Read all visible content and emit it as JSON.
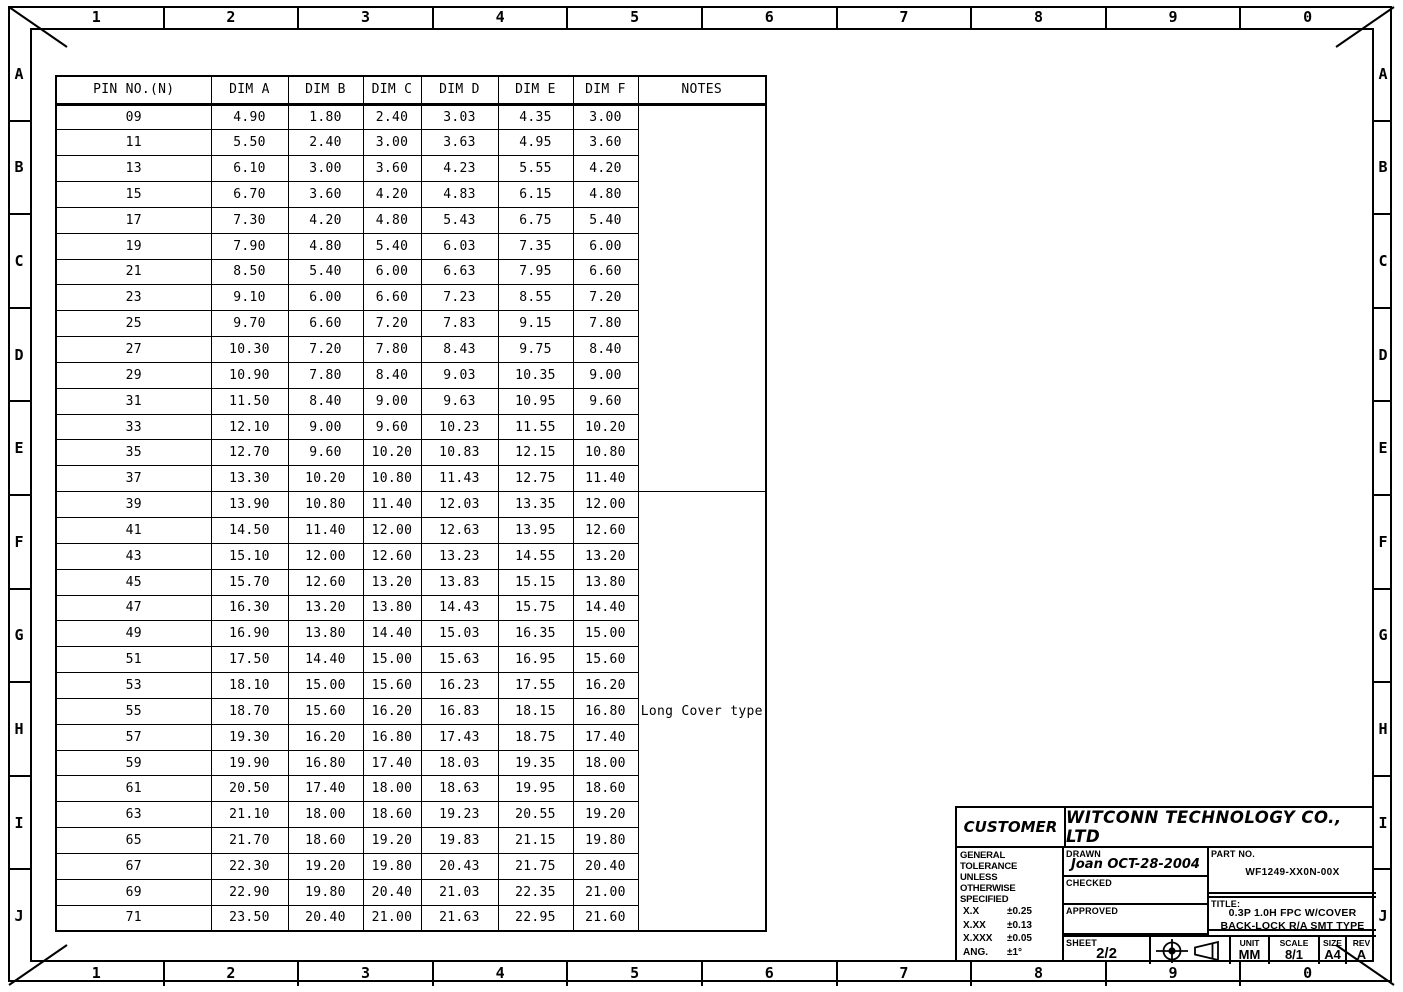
{
  "sheet": {
    "grid_columns": [
      "1",
      "2",
      "3",
      "4",
      "5",
      "6",
      "7",
      "8",
      "9",
      "0"
    ],
    "grid_rows": [
      "A",
      "B",
      "C",
      "D",
      "E",
      "F",
      "G",
      "H",
      "I",
      "J"
    ]
  },
  "table": {
    "columns": [
      "PIN NO.(N)",
      "DIM A",
      "DIM B",
      "DIM C",
      "DIM D",
      "DIM E",
      "DIM F",
      "NOTES"
    ],
    "rows": [
      [
        "09",
        "4.90",
        "1.80",
        "2.40",
        "3.03",
        "4.35",
        "3.00"
      ],
      [
        "11",
        "5.50",
        "2.40",
        "3.00",
        "3.63",
        "4.95",
        "3.60"
      ],
      [
        "13",
        "6.10",
        "3.00",
        "3.60",
        "4.23",
        "5.55",
        "4.20"
      ],
      [
        "15",
        "6.70",
        "3.60",
        "4.20",
        "4.83",
        "6.15",
        "4.80"
      ],
      [
        "17",
        "7.30",
        "4.20",
        "4.80",
        "5.43",
        "6.75",
        "5.40"
      ],
      [
        "19",
        "7.90",
        "4.80",
        "5.40",
        "6.03",
        "7.35",
        "6.00"
      ],
      [
        "21",
        "8.50",
        "5.40",
        "6.00",
        "6.63",
        "7.95",
        "6.60"
      ],
      [
        "23",
        "9.10",
        "6.00",
        "6.60",
        "7.23",
        "8.55",
        "7.20"
      ],
      [
        "25",
        "9.70",
        "6.60",
        "7.20",
        "7.83",
        "9.15",
        "7.80"
      ],
      [
        "27",
        "10.30",
        "7.20",
        "7.80",
        "8.43",
        "9.75",
        "8.40"
      ],
      [
        "29",
        "10.90",
        "7.80",
        "8.40",
        "9.03",
        "10.35",
        "9.00"
      ],
      [
        "31",
        "11.50",
        "8.40",
        "9.00",
        "9.63",
        "10.95",
        "9.60"
      ],
      [
        "33",
        "12.10",
        "9.00",
        "9.60",
        "10.23",
        "11.55",
        "10.20"
      ],
      [
        "35",
        "12.70",
        "9.60",
        "10.20",
        "10.83",
        "12.15",
        "10.80"
      ],
      [
        "37",
        "13.30",
        "10.20",
        "10.80",
        "11.43",
        "12.75",
        "11.40"
      ],
      [
        "39",
        "13.90",
        "10.80",
        "11.40",
        "12.03",
        "13.35",
        "12.00"
      ],
      [
        "41",
        "14.50",
        "11.40",
        "12.00",
        "12.63",
        "13.95",
        "12.60"
      ],
      [
        "43",
        "15.10",
        "12.00",
        "12.60",
        "13.23",
        "14.55",
        "13.20"
      ],
      [
        "45",
        "15.70",
        "12.60",
        "13.20",
        "13.83",
        "15.15",
        "13.80"
      ],
      [
        "47",
        "16.30",
        "13.20",
        "13.80",
        "14.43",
        "15.75",
        "14.40"
      ],
      [
        "49",
        "16.90",
        "13.80",
        "14.40",
        "15.03",
        "16.35",
        "15.00"
      ],
      [
        "51",
        "17.50",
        "14.40",
        "15.00",
        "15.63",
        "16.95",
        "15.60"
      ],
      [
        "53",
        "18.10",
        "15.00",
        "15.60",
        "16.23",
        "17.55",
        "16.20"
      ],
      [
        "55",
        "18.70",
        "15.60",
        "16.20",
        "16.83",
        "18.15",
        "16.80"
      ],
      [
        "57",
        "19.30",
        "16.20",
        "16.80",
        "17.43",
        "18.75",
        "17.40"
      ],
      [
        "59",
        "19.90",
        "16.80",
        "17.40",
        "18.03",
        "19.35",
        "18.00"
      ],
      [
        "61",
        "20.50",
        "17.40",
        "18.00",
        "18.63",
        "19.95",
        "18.60"
      ],
      [
        "63",
        "21.10",
        "18.00",
        "18.60",
        "19.23",
        "20.55",
        "19.20"
      ],
      [
        "65",
        "21.70",
        "18.60",
        "19.20",
        "19.83",
        "21.15",
        "19.80"
      ],
      [
        "67",
        "22.30",
        "19.20",
        "19.80",
        "20.43",
        "21.75",
        "20.40"
      ],
      [
        "69",
        "22.90",
        "19.80",
        "20.40",
        "21.03",
        "22.35",
        "21.00"
      ],
      [
        "71",
        "23.50",
        "20.40",
        "21.00",
        "21.63",
        "22.95",
        "21.60"
      ]
    ],
    "note_blocks": [
      {
        "from_row": 0,
        "span": 15,
        "text": ""
      },
      {
        "from_row": 15,
        "span": 17,
        "text": "Long Cover type"
      }
    ]
  },
  "title_block": {
    "customer_label": "CUSTOMER",
    "company": "WITCONN TECHNOLOGY CO., LTD",
    "tolerance": {
      "line1": "GENERAL TOLERANCE",
      "line2": "UNLESS",
      "line3": "OTHERWISE SPECIFIED",
      "items": [
        {
          "label": "X.X",
          "value": "±0.25"
        },
        {
          "label": "X.XX",
          "value": "±0.13"
        },
        {
          "label": "X.XXX",
          "value": "±0.05"
        },
        {
          "label": "ANG.",
          "value": "±1°"
        }
      ]
    },
    "drawn_label": "DRAWN",
    "drawn_value": "Joan OCT-28-2004",
    "checked_label": "CHECKED",
    "approved_label": "APPROVED",
    "part_no_label": "PART NO.",
    "part_no_value": "WF1249-XX0N-00X",
    "title_label": "TITLE:",
    "title_line1": "0.3P 1.0H FPC W/COVER",
    "title_line2": "BACK-LOCK R/A SMT TYPE",
    "sheet_label": "SHEET",
    "sheet_value": "2/2",
    "projection_icon": "first-angle-projection",
    "unit_label": "UNIT",
    "unit_value": "MM",
    "scale_label": "SCALE",
    "scale_value": "8/1",
    "size_label": "SIZE",
    "size_value": "A4",
    "rev_label": "REV",
    "rev_value": "A"
  },
  "colors": {
    "line": "#000000",
    "background": "#ffffff"
  }
}
